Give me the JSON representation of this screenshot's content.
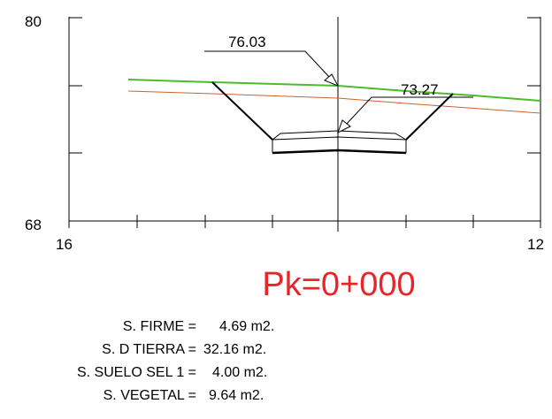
{
  "profile": {
    "y_top_label": "80",
    "y_bottom_label": "68",
    "x_left_label": "16",
    "x_right_label": "12",
    "annotation_left": "76.03",
    "annotation_right": "73.27",
    "colors": {
      "terrain": "#4dbb2c",
      "subgrade": "#c8642d",
      "lines": "#000000"
    }
  },
  "station": {
    "label": "Pk=0+000",
    "color": "#e8262a"
  },
  "areas": [
    {
      "name": "S. FIRME =",
      "value": "4.69 m2."
    },
    {
      "name": "S. D TIERRA =",
      "value": "32.16 m2."
    },
    {
      "name": "S. SUELO SEL 1 =",
      "value": "4.00 m2."
    },
    {
      "name": "S. VEGETAL =",
      "value": "9.64 m2."
    }
  ]
}
